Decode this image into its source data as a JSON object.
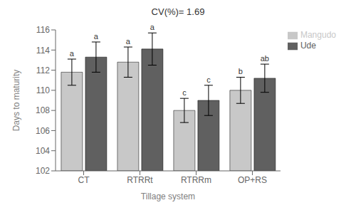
{
  "chart_data": {
    "type": "bar",
    "title": "CV(%)= 1.69",
    "xlabel": "Tillage system",
    "ylabel": "Days to maturity",
    "categories": [
      "CT",
      "RTRRt",
      "RTRRm",
      "OP+RS"
    ],
    "series": [
      {
        "name": "Mangudo",
        "color": "#c8c8c8",
        "values": [
          111.8,
          112.8,
          108.0,
          110.0
        ],
        "errors": [
          1.3,
          1.5,
          1.2,
          1.3
        ],
        "labels": [
          "a",
          "a",
          "c",
          "b"
        ]
      },
      {
        "name": "Ude",
        "color": "#606060",
        "values": [
          113.3,
          114.1,
          109.0,
          111.2
        ],
        "errors": [
          1.5,
          1.6,
          1.5,
          1.4
        ],
        "labels": [
          "a",
          "a",
          "c",
          "ab"
        ]
      }
    ],
    "ylim": [
      102,
      116
    ],
    "yticks": [
      102,
      104,
      106,
      108,
      110,
      112,
      114,
      116
    ],
    "grid": false,
    "legend": "right"
  }
}
